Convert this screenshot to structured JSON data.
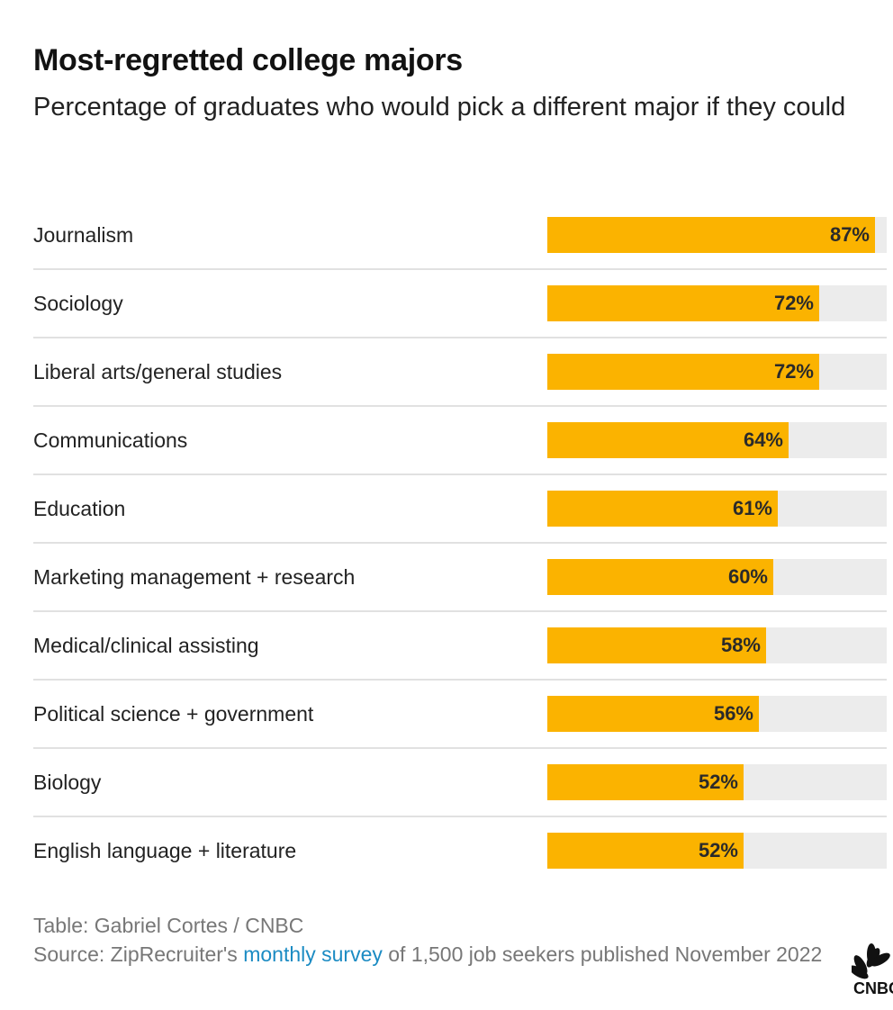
{
  "chart_data": {
    "type": "bar",
    "title": "Most-regretted college majors",
    "subtitle": "Percentage of graduates who would pick a different major if they could",
    "categories": [
      "Journalism",
      "Sociology",
      "Liberal arts/general studies",
      "Communications",
      "Education",
      "Marketing management + research",
      "Medical/clinical assisting",
      "Political science + government",
      "Biology",
      "English language + literature"
    ],
    "values": [
      87,
      72,
      72,
      64,
      61,
      60,
      58,
      56,
      52,
      52
    ],
    "value_labels": [
      "87%",
      "72%",
      "72%",
      "64%",
      "61%",
      "60%",
      "58%",
      "56%",
      "52%",
      "52%"
    ],
    "xlim": [
      0,
      90
    ],
    "grid": false,
    "colors": {
      "bar": "#fbb300",
      "track": "#ececec"
    }
  },
  "footer": {
    "credit": "Table: Gabriel Cortes / CNBC",
    "source_prefix": "Source: ZipRecruiter's ",
    "source_link": "monthly survey",
    "source_suffix": " of 1,500 job seekers published November 2022"
  },
  "logo": {
    "text": "CNBC",
    "icon": "peacock-icon"
  }
}
